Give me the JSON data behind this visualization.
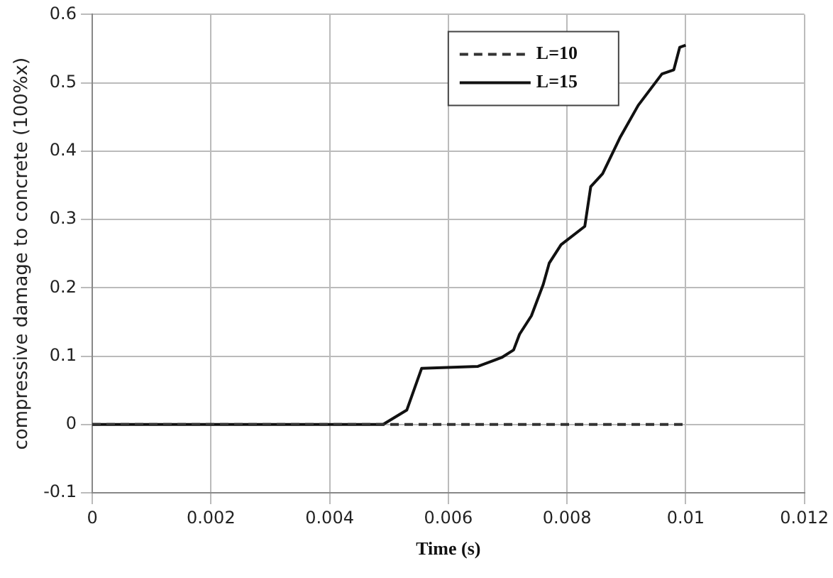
{
  "chart_data": {
    "type": "line",
    "xlabel": "Time (s)",
    "ylabel": "compressive damage to concrete (100%x)",
    "xlim": [
      0,
      0.012
    ],
    "xticks": [
      0,
      0.002,
      0.004,
      0.006,
      0.008,
      0.01,
      0.012
    ],
    "ylim": [
      -0.1,
      0.6
    ],
    "yticks": [
      -0.1,
      0,
      0.1,
      0.2,
      0.3,
      0.4,
      0.5,
      0.6
    ],
    "grid": true,
    "legend": "top right",
    "marker": "none",
    "series": [
      {
        "name": "L=10",
        "color": "#333333",
        "line_style": "dashed",
        "x": [
          0,
          0.01
        ],
        "values": [
          0,
          0
        ]
      },
      {
        "name": "L=15",
        "color": "#111111",
        "line_style": "solid",
        "x": [
          0,
          0.0049,
          0.0053,
          0.00555,
          0.0065,
          0.0069,
          0.0071,
          0.0072,
          0.0074,
          0.0076,
          0.0077,
          0.0079,
          0.0083,
          0.0084,
          0.0086,
          0.0089,
          0.0092,
          0.0096,
          0.0098,
          0.0099,
          0.01
        ],
        "values": [
          0,
          0,
          0.021,
          0.082,
          0.085,
          0.098,
          0.109,
          0.132,
          0.159,
          0.205,
          0.236,
          0.263,
          0.29,
          0.348,
          0.367,
          0.421,
          0.467,
          0.513,
          0.519,
          0.552,
          0.555
        ]
      }
    ]
  }
}
